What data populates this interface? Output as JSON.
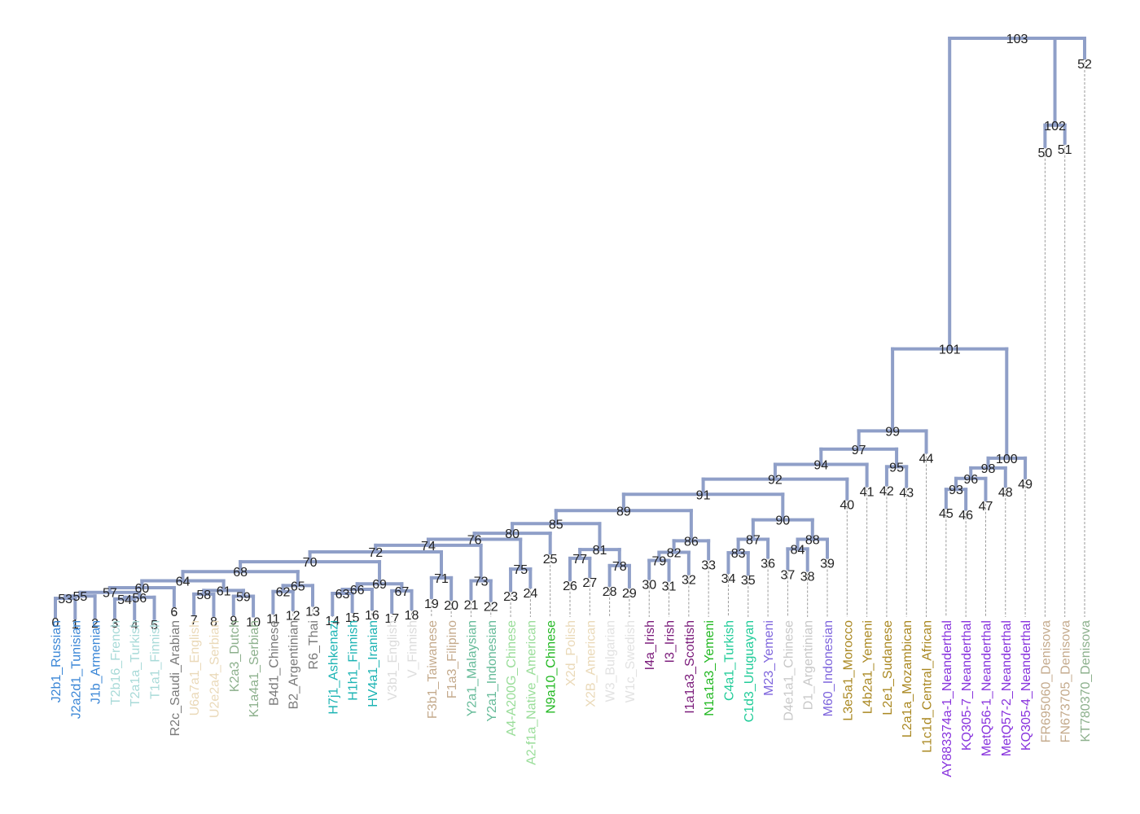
{
  "tree": {
    "leaves": [
      {
        "id": "0",
        "label": "J2b1_Russian",
        "color": "#3a86d6"
      },
      {
        "id": "1",
        "label": "J2a2d1_Tunisian",
        "color": "#3a86d6"
      },
      {
        "id": "2",
        "label": "J1b_Armenian",
        "color": "#3a86d6"
      },
      {
        "id": "3",
        "label": "T2b16_French",
        "color": "#a8dad8"
      },
      {
        "id": "4",
        "label": "T2a1a_Turkish",
        "color": "#a8dad8"
      },
      {
        "id": "5",
        "label": "T1a1_Finnish",
        "color": "#a8dad8"
      },
      {
        "id": "6",
        "label": "R2c_Saudi_Arabian",
        "color": "#7a7a7a"
      },
      {
        "id": "7",
        "label": "U6a7a1_English",
        "color": "#ead9b8"
      },
      {
        "id": "8",
        "label": "U2e2a4_Serbian",
        "color": "#ead9b8"
      },
      {
        "id": "9",
        "label": "K2a3_Dutch",
        "color": "#8cb08c"
      },
      {
        "id": "10",
        "label": "K1a4a1_Serbian",
        "color": "#8cb08c"
      },
      {
        "id": "11",
        "label": "B4d1_Chinese",
        "color": "#7a7a7a"
      },
      {
        "id": "12",
        "label": "B2_Argentinian",
        "color": "#7a7a7a"
      },
      {
        "id": "13",
        "label": "R6_Thai",
        "color": "#7a7a7a"
      },
      {
        "id": "14",
        "label": "H7j1_Ashkenazi",
        "color": "#1bb3b3"
      },
      {
        "id": "15",
        "label": "H1h1_Finnish",
        "color": "#1bb3b3"
      },
      {
        "id": "16",
        "label": "HV4a1_Iranian",
        "color": "#1bb3b3"
      },
      {
        "id": "17",
        "label": "V3b1_English",
        "color": "#dcdcdc"
      },
      {
        "id": "18",
        "label": "V_Finnish",
        "color": "#dcdcdc"
      },
      {
        "id": "19",
        "label": "F3b1_Taiwanese",
        "color": "#c4aa8c"
      },
      {
        "id": "20",
        "label": "F1a3_Filipino",
        "color": "#c4aa8c"
      },
      {
        "id": "21",
        "label": "Y2a1_Malaysian",
        "color": "#66bb99"
      },
      {
        "id": "22",
        "label": "Y2a1_Indonesian",
        "color": "#66bb99"
      },
      {
        "id": "23",
        "label": "A4-A200G_Chinese",
        "color": "#99dd99"
      },
      {
        "id": "24",
        "label": "A2-f1a_Native_American",
        "color": "#99dd99"
      },
      {
        "id": "25",
        "label": "N9a10_Chinese",
        "color": "#22b822"
      },
      {
        "id": "26",
        "label": "X2d_Polish",
        "color": "#ead9b8"
      },
      {
        "id": "27",
        "label": "X2B_American",
        "color": "#ead9b8"
      },
      {
        "id": "28",
        "label": "W3_Bulgarian",
        "color": "#e2e2e2"
      },
      {
        "id": "29",
        "label": "W1c_Swedish",
        "color": "#e2e2e2"
      },
      {
        "id": "30",
        "label": "I4a_Irish",
        "color": "#7a1a7a"
      },
      {
        "id": "31",
        "label": "I3_Irish",
        "color": "#7a1a7a"
      },
      {
        "id": "32",
        "label": "I1a1a3_Scottish",
        "color": "#7a1a7a"
      },
      {
        "id": "33",
        "label": "N1a1a3_Yemeni",
        "color": "#22b822"
      },
      {
        "id": "34",
        "label": "C4a1_Turkish",
        "color": "#22cc99"
      },
      {
        "id": "35",
        "label": "C1d3_Uruguayan",
        "color": "#22cc99"
      },
      {
        "id": "36",
        "label": "M23_Yemeni",
        "color": "#7f66dd"
      },
      {
        "id": "37",
        "label": "D4e1a1_Chinese",
        "color": "#c8c8c8"
      },
      {
        "id": "38",
        "label": "D1_Argentinian",
        "color": "#c8c8c8"
      },
      {
        "id": "39",
        "label": "M60_Indonesian",
        "color": "#7f66dd"
      },
      {
        "id": "40",
        "label": "L3e5a1_Morocco",
        "color": "#aa8822"
      },
      {
        "id": "41",
        "label": "L4b2a1_Yemeni",
        "color": "#aa8822"
      },
      {
        "id": "42",
        "label": "L2e1_Sudanese",
        "color": "#aa8822"
      },
      {
        "id": "43",
        "label": "L2a1a_Mozambican",
        "color": "#aa8822"
      },
      {
        "id": "44",
        "label": "L1c1d_Central_African",
        "color": "#aa8822"
      },
      {
        "id": "45",
        "label": "AY883374a-1_Neanderthal",
        "color": "#8833dd"
      },
      {
        "id": "46",
        "label": "KQ305-7_Neanderthal",
        "color": "#8833dd"
      },
      {
        "id": "47",
        "label": "MetQ56-1_Neanderthal",
        "color": "#8833dd"
      },
      {
        "id": "48",
        "label": "MetQ57-2_Neanderthal",
        "color": "#8833dd"
      },
      {
        "id": "49",
        "label": "KQ305-4_Neanderthal",
        "color": "#8833dd"
      },
      {
        "id": "50",
        "label": "FR695060_Denisova",
        "color": "#c4aa8c"
      },
      {
        "id": "51",
        "label": "FN673705_Denisova",
        "color": "#c4aa8c"
      },
      {
        "id": "52",
        "label": "KT780370_Denisova",
        "color": "#8cb08c"
      }
    ],
    "internal_nodes": [
      {
        "id": "53",
        "children": [
          "0",
          "1"
        ],
        "height": 0.011
      },
      {
        "id": "54",
        "children": [
          "3",
          "4"
        ],
        "height": 0.008
      },
      {
        "id": "55",
        "children": [
          "53",
          "2"
        ],
        "height": 0.022
      },
      {
        "id": "56",
        "children": [
          "54",
          "5"
        ],
        "height": 0.016
      },
      {
        "id": "57",
        "children": [
          "55",
          "56"
        ],
        "height": 0.039
      },
      {
        "id": "58",
        "children": [
          "7",
          "8"
        ],
        "height": 0.031
      },
      {
        "id": "59",
        "children": [
          "9",
          "10"
        ],
        "height": 0.021
      },
      {
        "id": "60",
        "children": [
          "57",
          "6"
        ],
        "height": 0.061
      },
      {
        "id": "61",
        "children": [
          "58",
          "59"
        ],
        "height": 0.048
      },
      {
        "id": "62",
        "children": [
          "11",
          "12"
        ],
        "height": 0.043
      },
      {
        "id": "63",
        "children": [
          "14",
          "15"
        ],
        "height": 0.034
      },
      {
        "id": "64",
        "children": [
          "60",
          "61"
        ],
        "height": 0.093
      },
      {
        "id": "65",
        "children": [
          "62",
          "13"
        ],
        "height": 0.071
      },
      {
        "id": "66",
        "children": [
          "63",
          "16"
        ],
        "height": 0.053
      },
      {
        "id": "67",
        "children": [
          "17",
          "18"
        ],
        "height": 0.046
      },
      {
        "id": "68",
        "children": [
          "64",
          "65"
        ],
        "height": 0.136
      },
      {
        "id": "69",
        "children": [
          "66",
          "67"
        ],
        "height": 0.079
      },
      {
        "id": "70",
        "children": [
          "68",
          "69"
        ],
        "height": 0.182
      },
      {
        "id": "71",
        "children": [
          "19",
          "20"
        ],
        "height": 0.107
      },
      {
        "id": "72",
        "children": [
          "70",
          "71"
        ],
        "height": 0.228
      },
      {
        "id": "73",
        "children": [
          "21",
          "22"
        ],
        "height": 0.093
      },
      {
        "id": "74",
        "children": [
          "72",
          "73"
        ],
        "height": 0.259
      },
      {
        "id": "75",
        "children": [
          "23",
          "24"
        ],
        "height": 0.148
      },
      {
        "id": "76",
        "children": [
          "74",
          "75"
        ],
        "height": 0.287
      },
      {
        "id": "77",
        "children": [
          "26",
          "27"
        ],
        "height": 0.198
      },
      {
        "id": "78",
        "children": [
          "28",
          "29"
        ],
        "height": 0.164
      },
      {
        "id": "79",
        "children": [
          "30",
          "31"
        ],
        "height": 0.188
      },
      {
        "id": "80",
        "children": [
          "76",
          "25"
        ],
        "height": 0.315
      },
      {
        "id": "81",
        "children": [
          "77",
          "78"
        ],
        "height": 0.239
      },
      {
        "id": "82",
        "children": [
          "79",
          "32"
        ],
        "height": 0.226
      },
      {
        "id": "83",
        "children": [
          "34",
          "35"
        ],
        "height": 0.224
      },
      {
        "id": "84",
        "children": [
          "37",
          "38"
        ],
        "height": 0.242
      },
      {
        "id": "85",
        "children": [
          "80",
          "81"
        ],
        "height": 0.36
      },
      {
        "id": "86",
        "children": [
          "82",
          "33"
        ],
        "height": 0.28
      },
      {
        "id": "87",
        "children": [
          "83",
          "36"
        ],
        "height": 0.287
      },
      {
        "id": "88",
        "children": [
          "84",
          "39"
        ],
        "height": 0.287
      },
      {
        "id": "89",
        "children": [
          "85",
          "86"
        ],
        "height": 0.421
      },
      {
        "id": "90",
        "children": [
          "87",
          "88"
        ],
        "height": 0.378
      },
      {
        "id": "91",
        "children": [
          "89",
          "90"
        ],
        "height": 0.497
      },
      {
        "id": "92",
        "children": [
          "91",
          "40"
        ],
        "height": 0.568
      },
      {
        "id": "93",
        "children": [
          "45",
          "46"
        ],
        "height": 0.52
      },
      {
        "id": "94",
        "children": [
          "92",
          "41"
        ],
        "height": 0.637
      },
      {
        "id": "95",
        "children": [
          "42",
          "43"
        ],
        "height": 0.626
      },
      {
        "id": "96",
        "children": [
          "93",
          "47"
        ],
        "height": 0.571
      },
      {
        "id": "97",
        "children": [
          "94",
          "95"
        ],
        "height": 0.708
      },
      {
        "id": "98",
        "children": [
          "96",
          "48"
        ],
        "height": 0.62
      },
      {
        "id": "99",
        "children": [
          "97",
          "44"
        ],
        "height": 0.793
      },
      {
        "id": "100",
        "children": [
          "98",
          "49"
        ],
        "height": 0.666
      },
      {
        "id": "101",
        "children": [
          "99",
          "100"
        ],
        "height": 1.176
      },
      {
        "id": "102",
        "children": [
          "50",
          "51"
        ],
        "height": 2.221
      },
      {
        "id": "103",
        "children": [
          "101",
          "102",
          "52"
        ],
        "height": 2.627
      }
    ]
  }
}
